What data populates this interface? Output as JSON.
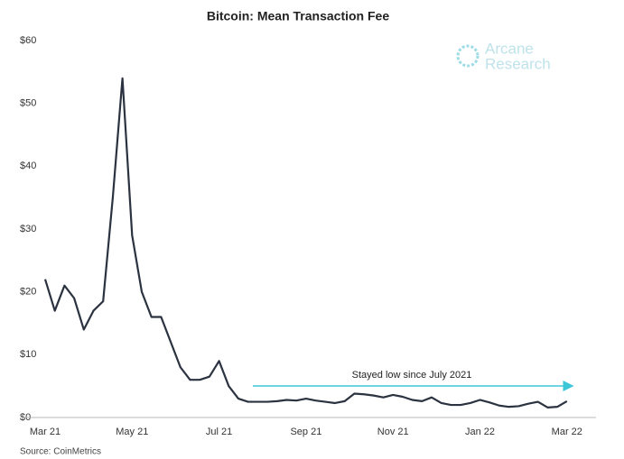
{
  "chart_data": {
    "type": "line",
    "title": "Bitcoin: Mean Transaction Fee",
    "source": "Source: CoinMetrics",
    "logo": [
      "Arcane",
      "Research"
    ],
    "annotation": "Stayed low since July 2021",
    "categories": [
      "Mar 21",
      null,
      null,
      null,
      null,
      null,
      null,
      null,
      null,
      "May 21",
      null,
      null,
      null,
      null,
      null,
      null,
      null,
      null,
      "Jul 21",
      null,
      null,
      null,
      null,
      null,
      null,
      null,
      null,
      "Sep 21",
      null,
      null,
      null,
      null,
      null,
      null,
      null,
      null,
      "Nov 21",
      null,
      null,
      null,
      null,
      null,
      null,
      null,
      null,
      "Jan 22",
      null,
      null,
      null,
      null,
      null,
      null,
      null,
      null,
      "Mar 22"
    ],
    "series": [
      {
        "name": "Mean Transaction Fee",
        "color": "#2b3240",
        "values": [
          22,
          17,
          21,
          19,
          14,
          17,
          18.5,
          35,
          54,
          29,
          20,
          16,
          16,
          12,
          8,
          6,
          6,
          6.5,
          9,
          5,
          3,
          2.5,
          2.5,
          2.5,
          2.6,
          2.8,
          2.7,
          3.0,
          2.7,
          2.5,
          2.3,
          2.6,
          3.8,
          3.7,
          3.5,
          3.2,
          3.6,
          3.3,
          2.8,
          2.6,
          3.2,
          2.3,
          2.0,
          2.0,
          2.3,
          2.8,
          2.4,
          1.9,
          1.7,
          1.8,
          2.2,
          2.5,
          1.6,
          1.7,
          2.6
        ]
      }
    ],
    "ylim": [
      0,
      60
    ],
    "yticks": [
      {
        "value": 0,
        "label": "$0"
      },
      {
        "value": 10,
        "label": "$10"
      },
      {
        "value": 20,
        "label": "$20"
      },
      {
        "value": 30,
        "label": "$30"
      },
      {
        "value": 40,
        "label": "$40"
      },
      {
        "value": 50,
        "label": "$50"
      },
      {
        "value": 60,
        "label": "$60"
      }
    ],
    "grid": false
  }
}
